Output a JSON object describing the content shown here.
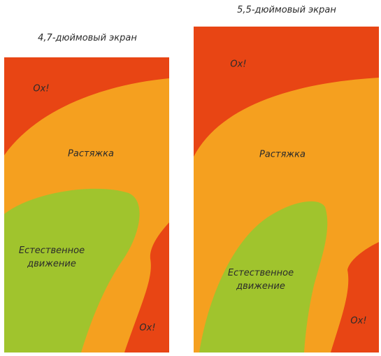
{
  "colors": {
    "red": "#e84514",
    "orange": "#f5a01f",
    "green": "#a0c42d"
  },
  "screens": [
    {
      "caption": "4,7-дюймовый экран",
      "zones": {
        "ouch_top": "Ох!",
        "stretch": "Растяжка",
        "natural": "Естественное\nдвижение",
        "ouch_bottom": "Ох!"
      }
    },
    {
      "caption": "5,5-дюймовый экран",
      "zones": {
        "ouch_top": "Ох!",
        "stretch": "Растяжка",
        "natural": "Естественное\nдвижение",
        "ouch_bottom": "Ох!"
      }
    }
  ]
}
